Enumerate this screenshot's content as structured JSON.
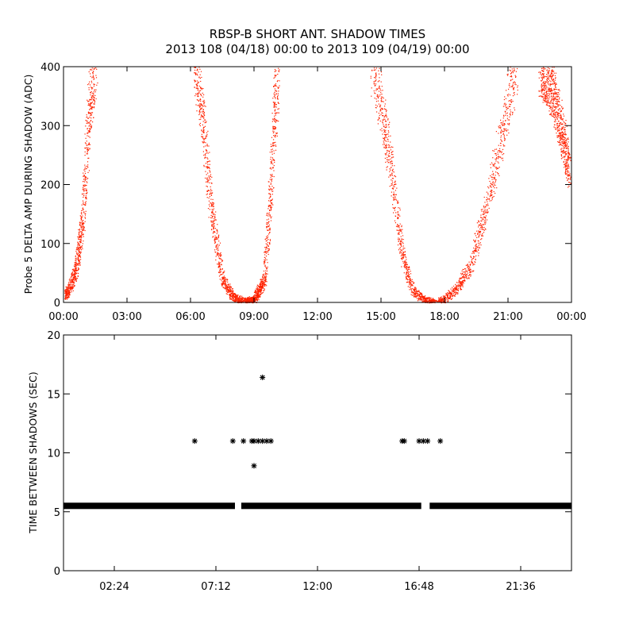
{
  "title": {
    "line1": "RBSP-B SHORT ANT. SHADOW TIMES",
    "line2": "2013 108 (04/18) 00:00 to 2013 109 (04/19) 00:00"
  },
  "chart_data": [
    {
      "type": "scatter",
      "panel": "top",
      "ylabel": "Probe 5 DELTA AMP DURING SHADOW (ADC)",
      "xlabel": "",
      "xlim": [
        "00:00",
        "24:00"
      ],
      "ylim": [
        0,
        400
      ],
      "x_tick_labels": [
        "00:00",
        "03:00",
        "06:00",
        "09:00",
        "12:00",
        "15:00",
        "18:00",
        "21:00",
        "00:00"
      ],
      "y_tick_labels": [
        "0",
        "100",
        "200",
        "300",
        "400"
      ],
      "point_color": "#ff2200",
      "series_segments": [
        {
          "x_hours": [
            0.0,
            0.3,
            0.6,
            0.9,
            1.1,
            1.3,
            1.5
          ],
          "y": [
            10,
            25,
            60,
            140,
            260,
            360,
            400
          ]
        },
        {
          "x_hours": [
            6.2,
            6.6,
            7.0,
            7.5,
            8.0,
            8.5
          ],
          "y": [
            400,
            300,
            150,
            40,
            10,
            2
          ]
        },
        {
          "x_hours": [
            8.6,
            9.0,
            9.5,
            9.8,
            10.1
          ],
          "y": [
            2,
            5,
            40,
            200,
            400
          ]
        },
        {
          "x_hours": [
            14.6,
            15.0,
            15.5,
            16.0,
            16.5,
            17.0,
            17.5
          ],
          "y": [
            400,
            340,
            220,
            80,
            20,
            5,
            0
          ]
        },
        {
          "x_hours": [
            17.7,
            18.5,
            19.2,
            19.8,
            20.5,
            21.0,
            21.4
          ],
          "y": [
            0,
            20,
            60,
            140,
            250,
            340,
            400
          ]
        },
        {
          "x_hours": [
            22.5,
            23.0,
            23.5,
            23.9
          ],
          "y": [
            400,
            370,
            300,
            220
          ]
        }
      ]
    },
    {
      "type": "scatter",
      "panel": "bottom",
      "ylabel": "TIME BETWEEN SHADOWS (SEC)",
      "xlabel": "",
      "ylim": [
        0,
        20
      ],
      "x_tick_labels": [
        "02:24",
        "07:12",
        "12:00",
        "16:48",
        "21:36"
      ],
      "y_tick_labels": [
        "0",
        "5",
        "10",
        "15",
        "20"
      ],
      "marker": "asterisk",
      "baseline_value": 5.5,
      "baseline_gaps_hours": [
        [
          8.1,
          8.4
        ],
        [
          16.9,
          17.3
        ]
      ],
      "points": [
        {
          "x_hours": 6.2,
          "y": 11
        },
        {
          "x_hours": 8.0,
          "y": 11
        },
        {
          "x_hours": 8.5,
          "y": 11
        },
        {
          "x_hours": 8.9,
          "y": 11
        },
        {
          "x_hours": 9.0,
          "y": 11
        },
        {
          "x_hours": 9.2,
          "y": 11
        },
        {
          "x_hours": 9.4,
          "y": 11
        },
        {
          "x_hours": 9.6,
          "y": 11
        },
        {
          "x_hours": 9.8,
          "y": 11
        },
        {
          "x_hours": 9.0,
          "y": 8.9
        },
        {
          "x_hours": 9.4,
          "y": 16.4
        },
        {
          "x_hours": 16.0,
          "y": 11
        },
        {
          "x_hours": 16.1,
          "y": 11
        },
        {
          "x_hours": 16.8,
          "y": 11
        },
        {
          "x_hours": 17.0,
          "y": 11
        },
        {
          "x_hours": 17.2,
          "y": 11
        },
        {
          "x_hours": 17.8,
          "y": 11
        }
      ]
    }
  ]
}
